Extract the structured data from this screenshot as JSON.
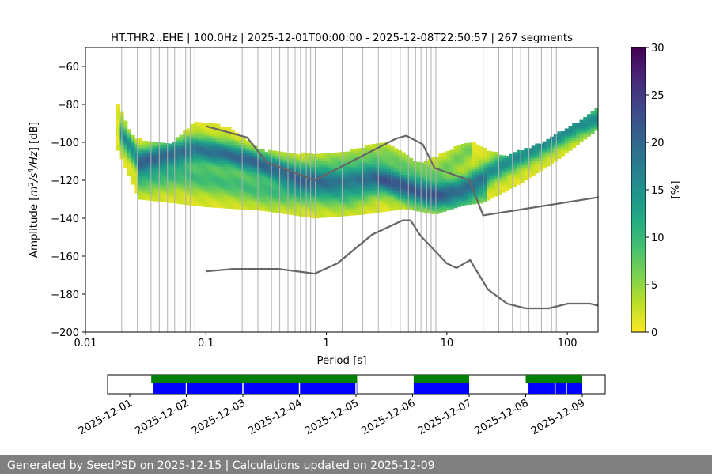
{
  "chart_data": {
    "type": "heatmap",
    "title": "HT.THR2..EHE | 100.0Hz | 2025-12-01T00:00:00 - 2025-12-08T22:50:57 | 267 segments",
    "xlabel": "Period [s]",
    "ylabel_parts": [
      "Amplitude [",
      "m",
      "2",
      "/",
      "s",
      "4",
      "/",
      "Hz",
      "] [dB]"
    ],
    "xscale": "log",
    "xlim": [
      0.01,
      180
    ],
    "ylim": [
      -200,
      -50
    ],
    "x_tick_labels": [
      "0.01",
      "0.1",
      "1",
      "10",
      "100"
    ],
    "y_tick_labels": [
      "−200",
      "−180",
      "−160",
      "−140",
      "−120",
      "−100",
      "−80",
      "−60"
    ],
    "colorbar": {
      "label": "[%]",
      "range": [
        0,
        30
      ],
      "tick_labels": [
        "0",
        "5",
        "10",
        "15",
        "20",
        "25",
        "30"
      ],
      "colormap": "viridis_r"
    },
    "grid": "vertical lines at x-axis frequency bin periods",
    "bin_periods": [
      0.02,
      0.027,
      0.035,
      0.041,
      0.048,
      0.055,
      0.061,
      0.068,
      0.074,
      0.081,
      0.2,
      0.27,
      0.35,
      0.41,
      0.48,
      0.55,
      0.61,
      0.68,
      0.74,
      0.81,
      1.35,
      2.0,
      2.7,
      3.5,
      4.1,
      4.8,
      5.5,
      6.1,
      6.8,
      7.4,
      8.1,
      20,
      27,
      35,
      41,
      48,
      55,
      61,
      68,
      74,
      81
    ],
    "density": {
      "ridges": [
        {
          "name": "main-mode",
          "points": [
            [
              0.02,
              -96
            ],
            [
              0.028,
              -110
            ],
            [
              0.05,
              -106
            ],
            [
              0.08,
              -103
            ],
            [
              0.15,
              -106
            ],
            [
              0.3,
              -113
            ],
            [
              0.6,
              -120
            ],
            [
              1.2,
              -121
            ],
            [
              2.5,
              -118
            ],
            [
              4.5,
              -123
            ],
            [
              8,
              -128
            ],
            [
              14,
              -124
            ],
            [
              30,
              -112
            ],
            [
              70,
              -100
            ],
            [
              120,
              -92
            ],
            [
              180,
              -88
            ]
          ],
          "spread_db": 6,
          "peak_percent": 14
        },
        {
          "name": "secondary-mode",
          "points": [
            [
              0.028,
              -120
            ],
            [
              0.06,
              -118
            ],
            [
              0.15,
              -122
            ],
            [
              0.35,
              -127
            ],
            [
              0.7,
              -127
            ],
            [
              1.5,
              -129
            ],
            [
              3,
              -122
            ],
            [
              6,
              -130
            ],
            [
              12,
              -132
            ],
            [
              20,
              -126
            ]
          ],
          "spread_db": 7,
          "peak_percent": 8
        },
        {
          "name": "upper-band",
          "points": [
            [
              0.028,
              -112
            ],
            [
              0.08,
              -108
            ],
            [
              0.25,
              -110
            ],
            [
              0.6,
              -115
            ],
            [
              1.5,
              -111
            ],
            [
              3,
              -108
            ],
            [
              8,
              -118
            ],
            [
              16,
              -104
            ]
          ],
          "spread_db": 6,
          "peak_percent": 5
        }
      ],
      "envelope_top": [
        [
          0.018,
          -78
        ],
        [
          0.025,
          -98
        ],
        [
          0.05,
          -102
        ],
        [
          0.08,
          -90
        ],
        [
          0.15,
          -92
        ],
        [
          0.3,
          -105
        ],
        [
          0.8,
          -107
        ],
        [
          1.5,
          -105
        ],
        [
          3,
          -100
        ],
        [
          6,
          -112
        ],
        [
          15,
          -100
        ],
        [
          30,
          -108
        ],
        [
          60,
          -101
        ],
        [
          120,
          -90
        ],
        [
          180,
          -82
        ]
      ],
      "envelope_bottom": [
        [
          0.018,
          -102
        ],
        [
          0.028,
          -130
        ],
        [
          0.1,
          -134
        ],
        [
          0.3,
          -136
        ],
        [
          0.8,
          -140
        ],
        [
          2,
          -138
        ],
        [
          4.5,
          -135
        ],
        [
          8,
          -138
        ],
        [
          14,
          -133
        ],
        [
          20,
          -132
        ],
        [
          40,
          -122
        ],
        [
          80,
          -110
        ],
        [
          130,
          -100
        ],
        [
          180,
          -93
        ]
      ]
    },
    "series": [
      {
        "name": "NHNM",
        "points": [
          [
            0.1,
            -91.5
          ],
          [
            0.22,
            -97.4
          ],
          [
            0.32,
            -110.5
          ],
          [
            0.8,
            -120
          ],
          [
            3.8,
            -98
          ],
          [
            4.6,
            -96.5
          ],
          [
            6.3,
            -101
          ],
          [
            7.9,
            -113.5
          ],
          [
            15.4,
            -120
          ],
          [
            20,
            -138.5
          ],
          [
            180,
            -129
          ]
        ]
      },
      {
        "name": "NLNM",
        "points": [
          [
            0.1,
            -168
          ],
          [
            0.17,
            -166.7
          ],
          [
            0.4,
            -166.7
          ],
          [
            0.8,
            -169.2
          ],
          [
            1.24,
            -163.7
          ],
          [
            2.4,
            -148.6
          ],
          [
            4.3,
            -141.1
          ],
          [
            5.0,
            -141.1
          ],
          [
            6.0,
            -149
          ],
          [
            10,
            -163.8
          ],
          [
            12,
            -166.2
          ],
          [
            15.6,
            -162.1
          ],
          [
            21.9,
            -177.5
          ],
          [
            31.6,
            -185
          ],
          [
            45,
            -187.5
          ],
          [
            70,
            -187.5
          ],
          [
            101,
            -185
          ],
          [
            154,
            -185
          ],
          [
            180,
            -186
          ]
        ]
      }
    ],
    "timeline": {
      "date_labels": [
        "2025-12-01",
        "2025-12-02",
        "2025-12-03",
        "2025-12-04",
        "2025-12-05",
        "2025-12-06",
        "2025-12-07",
        "2025-12-08",
        "2025-12-09"
      ],
      "coverage_days": [
        [
          0.38,
          4.02
        ],
        [
          5.02,
          6.0
        ],
        [
          7.0,
          8.0
        ]
      ],
      "psd_days": [
        [
          0.42,
          4.02
        ],
        [
          5.02,
          6.0
        ],
        [
          7.05,
          8.0
        ]
      ],
      "segment_breaks_days": [
        1.0,
        2.0,
        3.0,
        4.0,
        7.52,
        7.72
      ],
      "coverage_color": "#008000",
      "psd_color": "#0000ff"
    }
  },
  "footer": {
    "text": "Generated by SeedPSD on 2025-12-15 | Calculations updated on 2025-12-09"
  },
  "colors": {
    "model_line": "#666666",
    "grid": "#b0b0b0",
    "footer_bg": "#808080"
  }
}
